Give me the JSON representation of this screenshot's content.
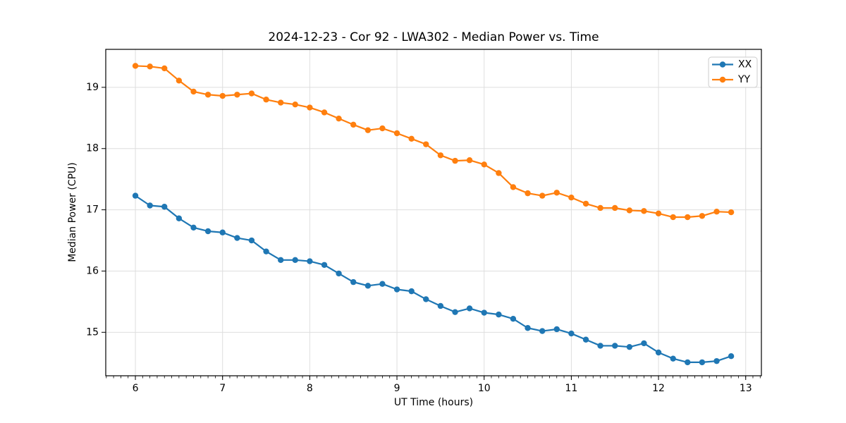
{
  "figure": {
    "title": "2024-12-23 - Cor 92 - LWA302 - Median Power vs. Time",
    "xlabel": "UT Time (hours)",
    "ylabel": "Median Power (CPU)"
  },
  "chart_data": {
    "type": "line",
    "title": "2024-12-23 - Cor 92 - LWA302 - Median Power vs. Time",
    "xlabel": "UT Time (hours)",
    "ylabel": "Median Power (CPU)",
    "x": [
      6.0,
      6.167,
      6.333,
      6.5,
      6.667,
      6.833,
      7.0,
      7.167,
      7.333,
      7.5,
      7.667,
      7.833,
      8.0,
      8.167,
      8.333,
      8.5,
      8.667,
      8.833,
      9.0,
      9.167,
      9.333,
      9.5,
      9.667,
      9.833,
      10.0,
      10.167,
      10.333,
      10.5,
      10.667,
      10.833,
      11.0,
      11.167,
      11.333,
      11.5,
      11.667,
      11.833,
      12.0,
      12.167,
      12.333,
      12.5,
      12.667,
      12.833
    ],
    "series": [
      {
        "name": "XX",
        "color": "#1f77b4",
        "values": [
          17.23,
          17.07,
          17.05,
          16.86,
          16.71,
          16.65,
          16.63,
          16.54,
          16.5,
          16.32,
          16.18,
          16.18,
          16.16,
          16.1,
          15.96,
          15.82,
          15.76,
          15.79,
          15.7,
          15.67,
          15.54,
          15.43,
          15.33,
          15.39,
          15.32,
          15.29,
          15.22,
          15.07,
          15.02,
          15.05,
          14.98,
          14.88,
          14.78,
          14.78,
          14.76,
          14.82,
          14.67,
          14.57,
          14.51,
          14.51,
          14.53,
          14.61
        ]
      },
      {
        "name": "YY",
        "color": "#ff7f0e",
        "values": [
          19.35,
          19.34,
          19.31,
          19.11,
          18.93,
          18.88,
          18.86,
          18.88,
          18.9,
          18.8,
          18.75,
          18.72,
          18.67,
          18.59,
          18.49,
          18.39,
          18.3,
          18.33,
          18.25,
          18.16,
          18.07,
          17.89,
          17.8,
          17.81,
          17.74,
          17.6,
          17.37,
          17.27,
          17.23,
          17.28,
          17.2,
          17.1,
          17.03,
          17.03,
          16.99,
          16.98,
          16.94,
          16.88,
          16.88,
          16.9,
          16.97,
          16.96
        ]
      }
    ],
    "xlim": [
      5.66,
      13.18
    ],
    "ylim": [
      14.29,
      19.62
    ],
    "xticks": [
      6,
      7,
      8,
      9,
      10,
      11,
      12,
      13
    ],
    "yticks": [
      15,
      16,
      17,
      18,
      19
    ],
    "x_minor_tick_step": 0.08333,
    "grid": true,
    "grid_color": "#dedede",
    "legend": {
      "position": "upper right",
      "entries": [
        "XX",
        "YY"
      ]
    },
    "marker": "circle"
  }
}
